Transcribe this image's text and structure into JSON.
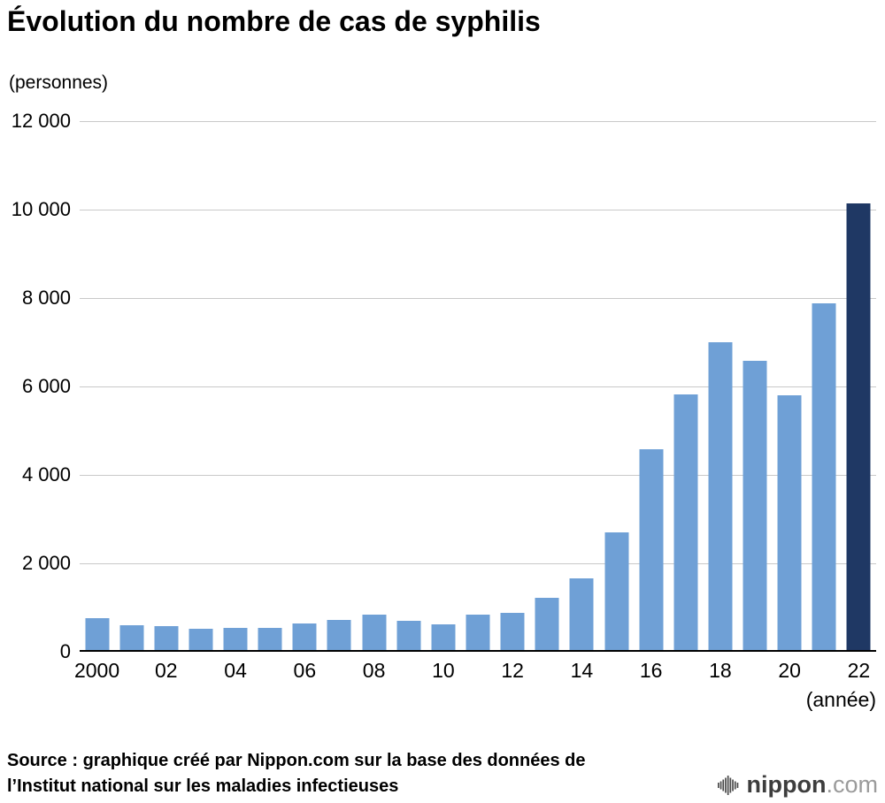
{
  "title": "Évolution du nombre de cas de syphilis",
  "unit_label": "(personnes)",
  "x_axis_unit": "(année)",
  "source": {
    "line1": "Source : graphique créé par Nippon.com sur la base des données de",
    "line2": "l’Institut national sur les maladies infectieuses"
  },
  "logo": {
    "brand": "nippon",
    "tld": ".com"
  },
  "chart_data": {
    "type": "bar",
    "title": "Évolution du nombre de cas de syphilis",
    "ylabel": "(personnes)",
    "xlabel": "(année)",
    "categories": [
      2000,
      2001,
      2002,
      2003,
      2004,
      2005,
      2006,
      2007,
      2008,
      2009,
      2010,
      2011,
      2012,
      2013,
      2014,
      2015,
      2016,
      2017,
      2018,
      2019,
      2020,
      2021,
      2022
    ],
    "values": [
      760,
      590,
      575,
      510,
      530,
      545,
      635,
      720,
      830,
      690,
      620,
      830,
      875,
      1230,
      1660,
      2690,
      4570,
      5820,
      7000,
      6580,
      5800,
      7880,
      10140
    ],
    "ylim": [
      0,
      12000
    ],
    "ytick_values": [
      0,
      2000,
      4000,
      6000,
      8000,
      10000,
      12000
    ],
    "ytick_labels": [
      "0",
      "2 000",
      "4 000",
      "6 000",
      "8 000",
      "10 000",
      "12 000"
    ],
    "xtick_indices": [
      0,
      2,
      4,
      6,
      8,
      10,
      12,
      14,
      16,
      18,
      20,
      22
    ],
    "xtick_labels": [
      "2000",
      "02",
      "04",
      "06",
      "08",
      "10",
      "12",
      "14",
      "16",
      "18",
      "20",
      "22"
    ],
    "grid": "horizontal",
    "legend": "none",
    "bar_color": "#6FA0D6",
    "highlight_color": "#1F3864",
    "highlight_index": 22
  }
}
